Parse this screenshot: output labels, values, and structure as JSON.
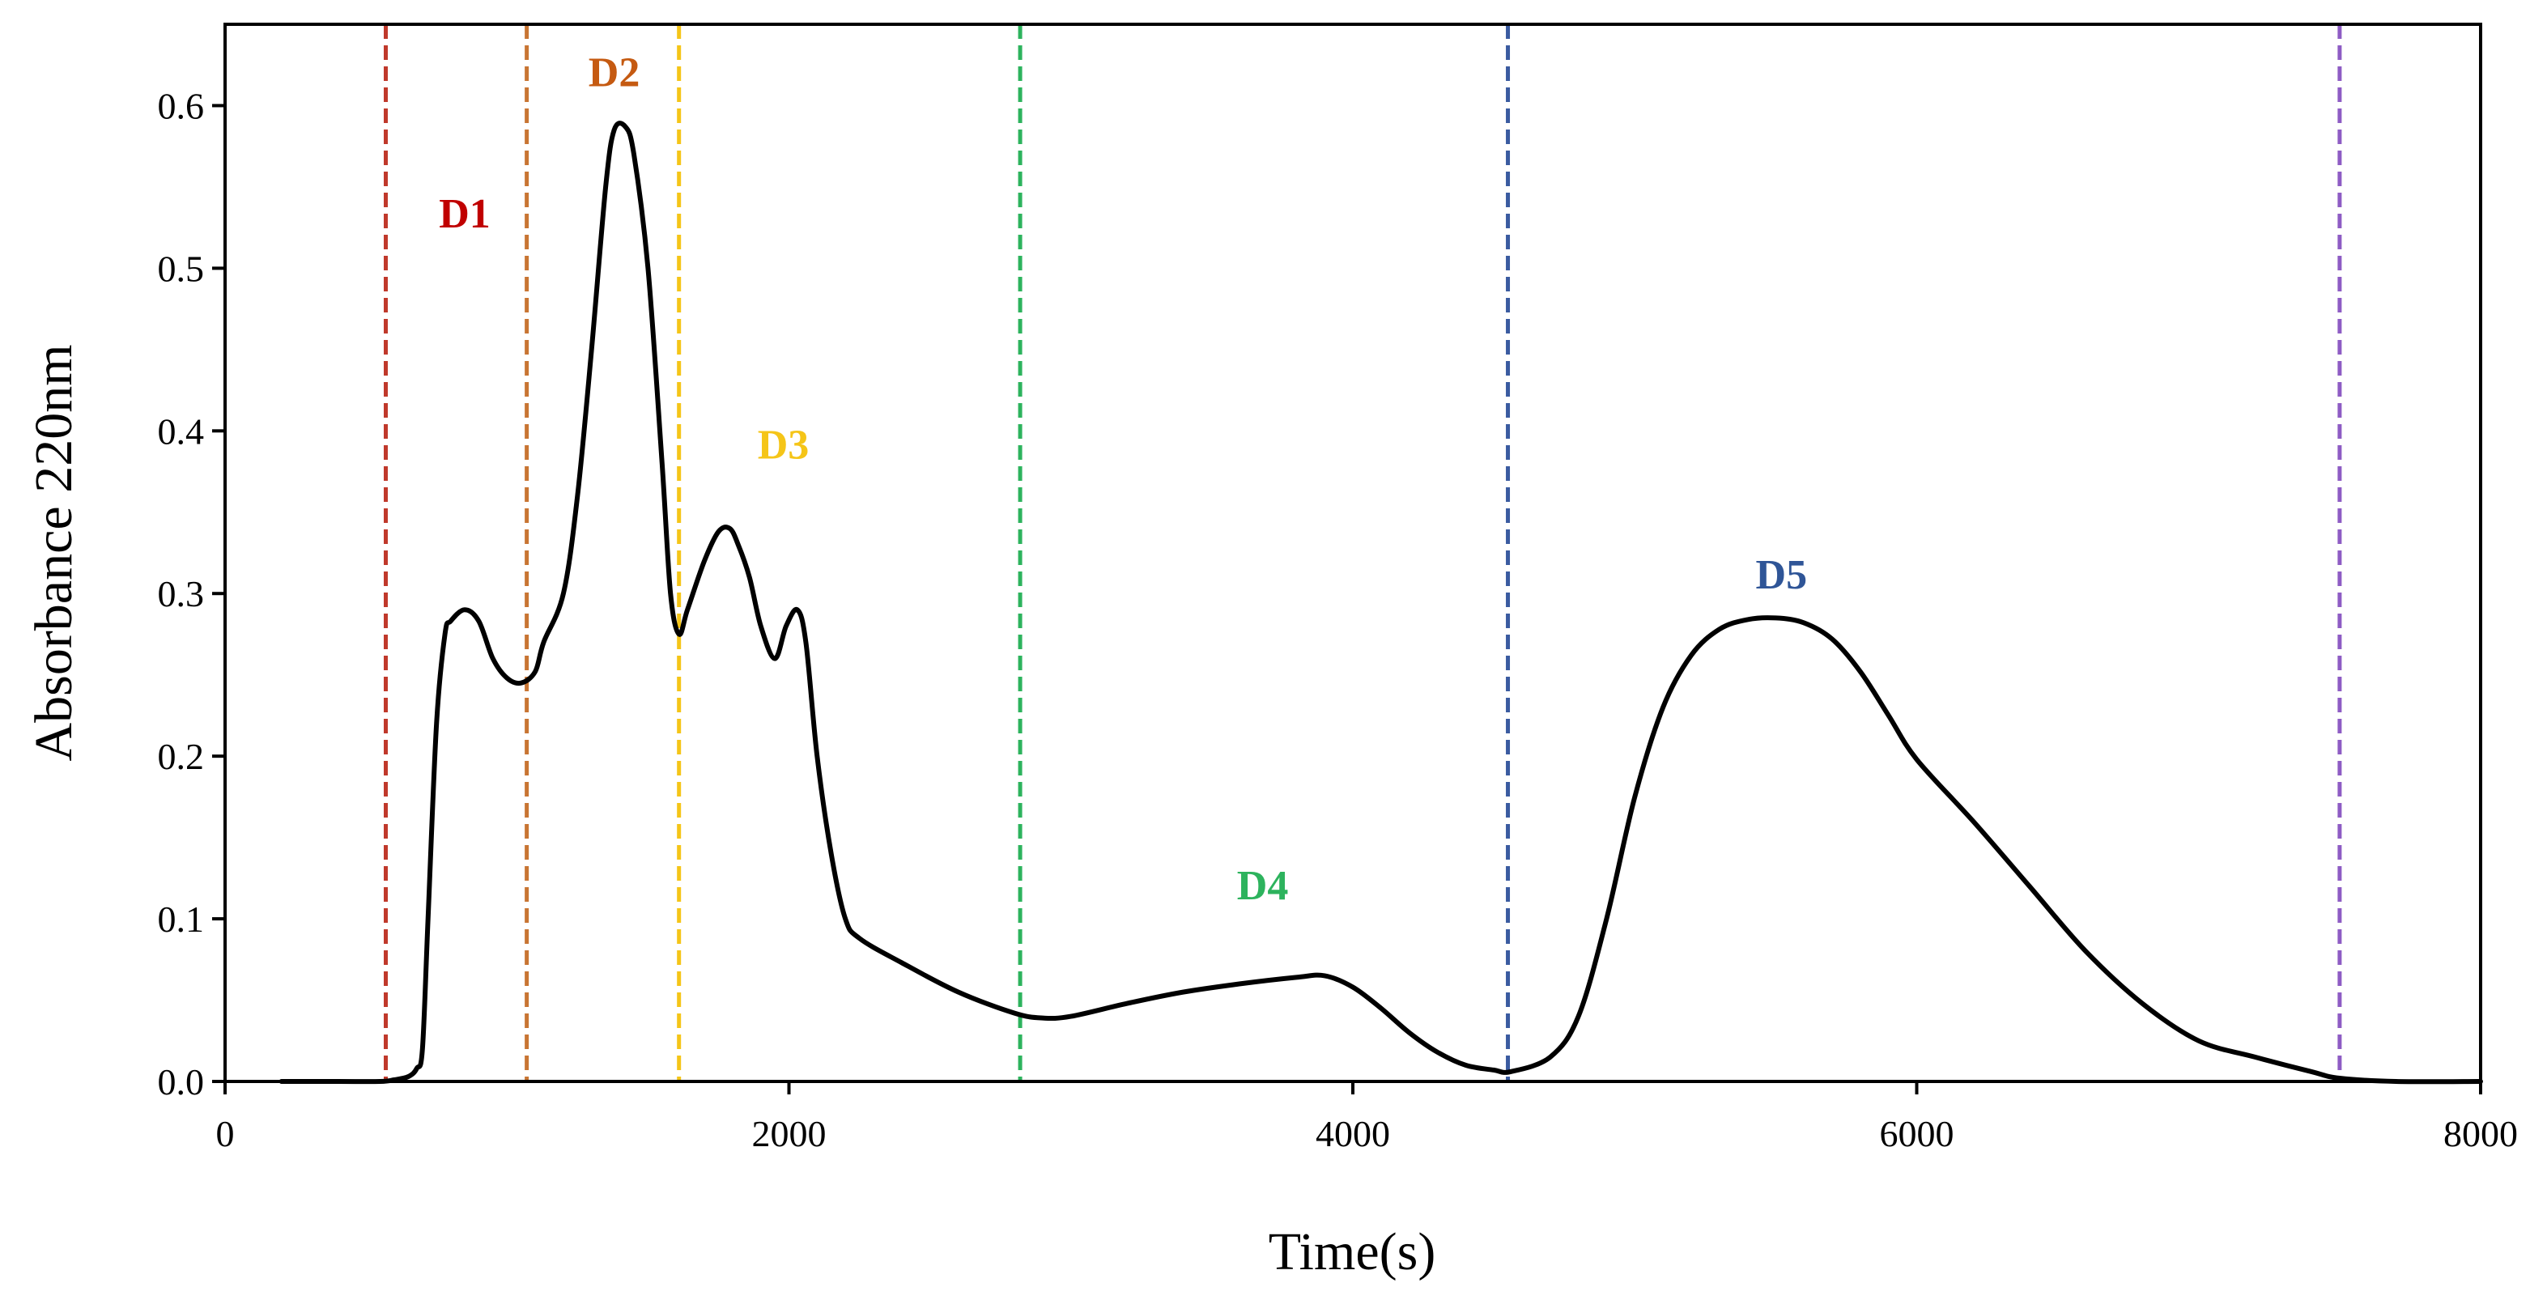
{
  "chart_data": {
    "type": "line",
    "title": "",
    "xlabel": "Time(s)",
    "ylabel": "Absorbance 220nm",
    "xlim": [
      0,
      8000
    ],
    "ylim": [
      0,
      0.65
    ],
    "xticks": [
      0,
      2000,
      4000,
      6000,
      8000
    ],
    "xtick_labels": [
      "0",
      "2000",
      "4000",
      "6000",
      "8000"
    ],
    "yticks": [
      0,
      0.1,
      0.2,
      0.3,
      0.4,
      0.5,
      0.6
    ],
    "ytick_labels": [
      "0.0",
      "0.1",
      "0.2",
      "0.3",
      "0.4",
      "0.5",
      "0.6"
    ],
    "grid": false,
    "series": [
      {
        "name": "Absorbance 220nm",
        "color": "#000000",
        "x": [
          200,
          400,
          550,
          600,
          650,
          680,
          700,
          720,
          750,
          780,
          800,
          850,
          900,
          950,
          1000,
          1050,
          1100,
          1130,
          1200,
          1250,
          1300,
          1350,
          1380,
          1420,
          1450,
          1500,
          1550,
          1580,
          1610,
          1640,
          1700,
          1750,
          1790,
          1820,
          1860,
          1900,
          1950,
          1990,
          2030,
          2060,
          2100,
          2150,
          2200,
          2250,
          2400,
          2600,
          2800,
          2900,
          3000,
          3200,
          3400,
          3600,
          3800,
          3900,
          4000,
          4100,
          4200,
          4300,
          4400,
          4500,
          4560,
          4700,
          4800,
          4900,
          5000,
          5100,
          5200,
          5300,
          5400,
          5500,
          5600,
          5700,
          5800,
          5900,
          6000,
          6200,
          6400,
          6600,
          6800,
          7000,
          7200,
          7400,
          7500,
          7700,
          8000
        ],
        "y": [
          0.0,
          0.0,
          0.0,
          0.001,
          0.003,
          0.008,
          0.02,
          0.1,
          0.22,
          0.275,
          0.283,
          0.29,
          0.283,
          0.26,
          0.248,
          0.245,
          0.252,
          0.27,
          0.3,
          0.36,
          0.45,
          0.55,
          0.585,
          0.587,
          0.57,
          0.5,
          0.38,
          0.3,
          0.275,
          0.29,
          0.32,
          0.338,
          0.34,
          0.33,
          0.31,
          0.28,
          0.26,
          0.28,
          0.29,
          0.27,
          0.2,
          0.14,
          0.1,
          0.088,
          0.073,
          0.055,
          0.042,
          0.039,
          0.04,
          0.048,
          0.055,
          0.06,
          0.064,
          0.065,
          0.058,
          0.045,
          0.03,
          0.018,
          0.01,
          0.007,
          0.006,
          0.015,
          0.04,
          0.1,
          0.175,
          0.23,
          0.262,
          0.278,
          0.284,
          0.285,
          0.282,
          0.272,
          0.252,
          0.225,
          0.198,
          0.16,
          0.12,
          0.08,
          0.048,
          0.025,
          0.015,
          0.006,
          0.002,
          0.0,
          0.0
        ]
      }
    ],
    "vlines": [
      {
        "x": 570,
        "color": "#c0392b"
      },
      {
        "x": 1070,
        "color": "#c87533"
      },
      {
        "x": 1610,
        "color": "#f5c518"
      },
      {
        "x": 2820,
        "color": "#2db35d"
      },
      {
        "x": 4550,
        "color": "#3a5ba0"
      },
      {
        "x": 7500,
        "color": "#8e5cc4"
      }
    ],
    "annotations": [
      {
        "text": "D1",
        "x": 850,
        "y": 0.525,
        "color": "#c00000"
      },
      {
        "text": "D2",
        "x": 1380,
        "y": 0.612,
        "color": "#c55a11"
      },
      {
        "text": "D3",
        "x": 1980,
        "y": 0.383,
        "color": "#f5c518"
      },
      {
        "text": "D4",
        "x": 3680,
        "y": 0.112,
        "color": "#2db35d"
      },
      {
        "text": "D5",
        "x": 5520,
        "y": 0.303,
        "color": "#2f5597"
      }
    ]
  }
}
